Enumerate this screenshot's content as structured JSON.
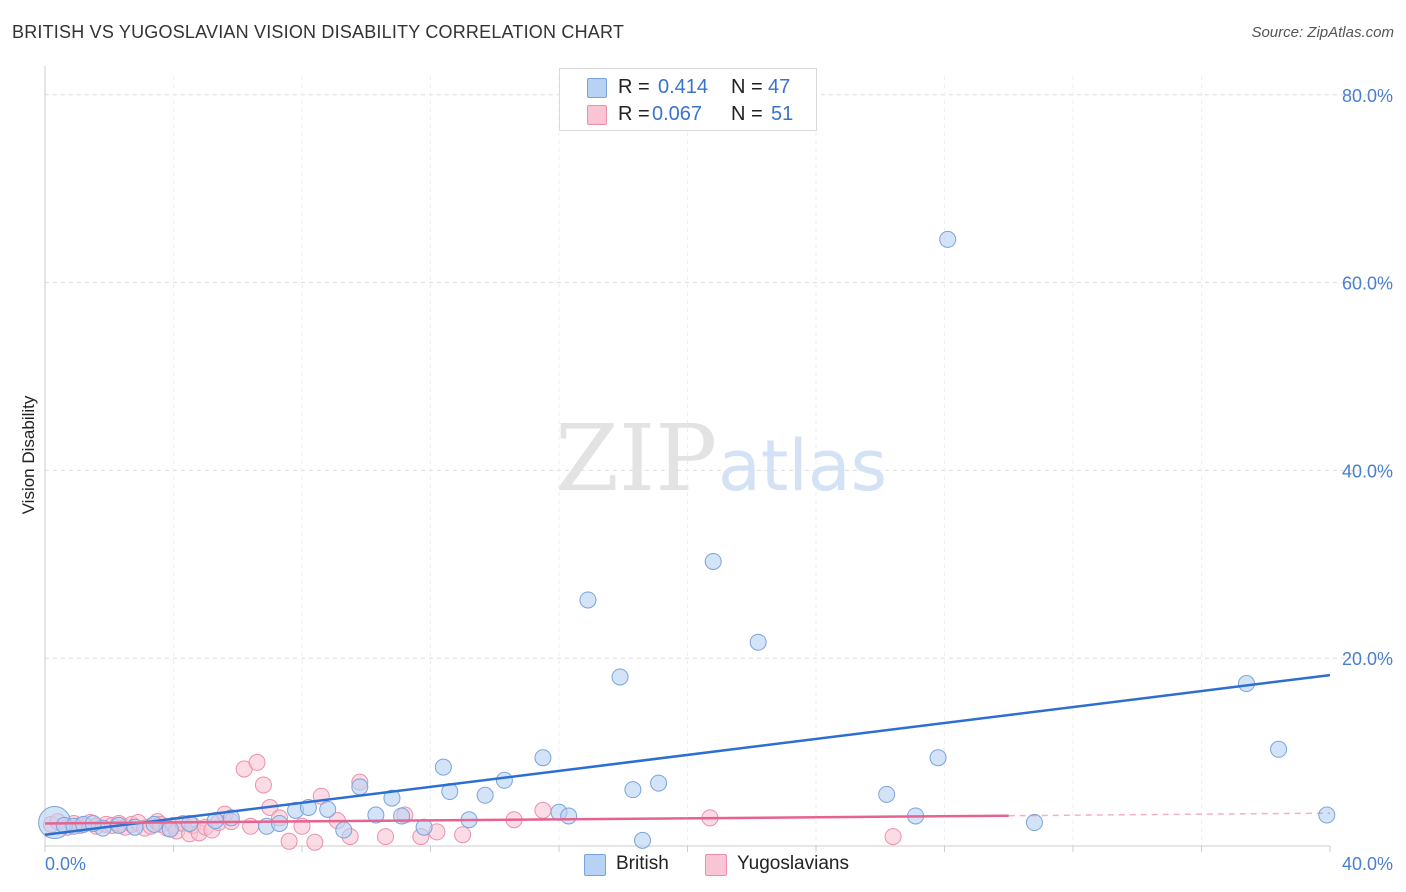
{
  "title": "BRITISH VS YUGOSLAVIAN VISION DISABILITY CORRELATION CHART",
  "source": "Source: ZipAtlas.com",
  "watermark": {
    "zip": "ZIP",
    "atlas": "atlas"
  },
  "colors": {
    "british_fill": "#b8d2f4",
    "british_stroke": "#7aa3dc",
    "british_line": "#2d6fd0",
    "yugo_fill": "#f9c4d4",
    "yugo_stroke": "#ee8fab",
    "yugo_line": "#e8628f",
    "grid": "#dddddd",
    "tick": "#4a7fd0"
  },
  "legend": {
    "rows": [
      {
        "r_label": "R =",
        "r_value": "0.414",
        "n_label": "N =",
        "n_value": "47"
      },
      {
        "r_label": "R =",
        "r_value": "0.067",
        "n_label": "N =",
        "n_value": "51"
      }
    ]
  },
  "bottom_legend": {
    "british": "British",
    "yugoslavians": "Yugoslavians"
  },
  "chart_data": {
    "type": "scatter",
    "title": "BRITISH VS YUGOSLAVIAN VISION DISABILITY CORRELATION CHART",
    "xlabel": "",
    "ylabel": "Vision Disability",
    "xlim": [
      0,
      40
    ],
    "ylim": [
      0,
      82
    ],
    "x_ticks": [
      0,
      40
    ],
    "x_tick_labels": [
      "0.0%",
      "40.0%"
    ],
    "y_ticks": [
      20,
      40,
      60,
      80
    ],
    "y_tick_labels": [
      "20.0%",
      "40.0%",
      "60.0%",
      "80.0%"
    ],
    "grid": true,
    "series": [
      {
        "name": "British",
        "R": 0.414,
        "N": 47,
        "trend": {
          "x": [
            0,
            40
          ],
          "y": [
            1.2,
            18.2
          ],
          "dashed_from": null
        },
        "points": [
          {
            "x": 0.3,
            "y": 2.5,
            "big": true
          },
          {
            "x": 0.6,
            "y": 2.2
          },
          {
            "x": 0.9,
            "y": 2.1
          },
          {
            "x": 1.2,
            "y": 2.3
          },
          {
            "x": 1.8,
            "y": 1.9
          },
          {
            "x": 2.3,
            "y": 2.2
          },
          {
            "x": 2.8,
            "y": 2.0
          },
          {
            "x": 3.4,
            "y": 2.3
          },
          {
            "x": 3.9,
            "y": 1.8
          },
          {
            "x": 4.5,
            "y": 2.4
          },
          {
            "x": 5.3,
            "y": 2.7
          },
          {
            "x": 5.8,
            "y": 3.0
          },
          {
            "x": 6.9,
            "y": 2.1
          },
          {
            "x": 7.3,
            "y": 2.4
          },
          {
            "x": 7.8,
            "y": 3.8
          },
          {
            "x": 8.2,
            "y": 4.1
          },
          {
            "x": 8.8,
            "y": 3.9
          },
          {
            "x": 9.3,
            "y": 1.7
          },
          {
            "x": 9.8,
            "y": 6.3
          },
          {
            "x": 10.3,
            "y": 3.3
          },
          {
            "x": 10.8,
            "y": 5.1
          },
          {
            "x": 11.1,
            "y": 3.2
          },
          {
            "x": 11.8,
            "y": 2.0
          },
          {
            "x": 12.4,
            "y": 8.4
          },
          {
            "x": 12.6,
            "y": 5.8
          },
          {
            "x": 13.2,
            "y": 2.8
          },
          {
            "x": 13.7,
            "y": 5.4
          },
          {
            "x": 14.3,
            "y": 7.0
          },
          {
            "x": 15.5,
            "y": 9.4
          },
          {
            "x": 16.0,
            "y": 3.6
          },
          {
            "x": 16.3,
            "y": 3.2
          },
          {
            "x": 16.9,
            "y": 26.2
          },
          {
            "x": 17.9,
            "y": 18.0
          },
          {
            "x": 18.3,
            "y": 6.0
          },
          {
            "x": 18.6,
            "y": 0.6
          },
          {
            "x": 19.1,
            "y": 6.7
          },
          {
            "x": 20.8,
            "y": 30.3
          },
          {
            "x": 22.2,
            "y": 21.7
          },
          {
            "x": 26.2,
            "y": 5.5
          },
          {
            "x": 27.1,
            "y": 3.2
          },
          {
            "x": 27.8,
            "y": 9.4
          },
          {
            "x": 28.1,
            "y": 64.6
          },
          {
            "x": 30.8,
            "y": 2.5
          },
          {
            "x": 37.4,
            "y": 17.3
          },
          {
            "x": 38.4,
            "y": 10.3
          },
          {
            "x": 39.9,
            "y": 3.3
          },
          {
            "x": 1.5,
            "y": 2.4
          }
        ]
      },
      {
        "name": "Yugoslavians",
        "R": 0.067,
        "N": 51,
        "trend": {
          "x": [
            0,
            40
          ],
          "y": [
            2.4,
            3.5
          ],
          "dashed_from": 30.0
        },
        "points": [
          {
            "x": 0.2,
            "y": 2.3
          },
          {
            "x": 0.4,
            "y": 2.6
          },
          {
            "x": 0.7,
            "y": 2.0
          },
          {
            "x": 0.9,
            "y": 2.4
          },
          {
            "x": 1.1,
            "y": 2.2
          },
          {
            "x": 1.4,
            "y": 2.5
          },
          {
            "x": 1.6,
            "y": 2.1
          },
          {
            "x": 1.9,
            "y": 2.3
          },
          {
            "x": 2.1,
            "y": 2.2
          },
          {
            "x": 2.3,
            "y": 2.4
          },
          {
            "x": 2.5,
            "y": 2.0
          },
          {
            "x": 2.7,
            "y": 2.3
          },
          {
            "x": 2.9,
            "y": 2.5
          },
          {
            "x": 3.1,
            "y": 1.9
          },
          {
            "x": 3.3,
            "y": 2.1
          },
          {
            "x": 3.5,
            "y": 2.6
          },
          {
            "x": 3.6,
            "y": 2.3
          },
          {
            "x": 3.8,
            "y": 1.9
          },
          {
            "x": 4.0,
            "y": 2.2
          },
          {
            "x": 4.1,
            "y": 1.6
          },
          {
            "x": 4.3,
            "y": 2.4
          },
          {
            "x": 4.5,
            "y": 1.3
          },
          {
            "x": 4.6,
            "y": 2.2
          },
          {
            "x": 4.8,
            "y": 1.4
          },
          {
            "x": 5.0,
            "y": 2.0
          },
          {
            "x": 5.2,
            "y": 1.7
          },
          {
            "x": 5.4,
            "y": 2.5
          },
          {
            "x": 5.6,
            "y": 3.4
          },
          {
            "x": 5.8,
            "y": 2.6
          },
          {
            "x": 6.2,
            "y": 8.2
          },
          {
            "x": 6.4,
            "y": 2.1
          },
          {
            "x": 6.6,
            "y": 8.9
          },
          {
            "x": 6.8,
            "y": 6.5
          },
          {
            "x": 7.0,
            "y": 4.1
          },
          {
            "x": 7.3,
            "y": 3.0
          },
          {
            "x": 7.6,
            "y": 0.5
          },
          {
            "x": 8.0,
            "y": 2.1
          },
          {
            "x": 8.4,
            "y": 0.4
          },
          {
            "x": 8.6,
            "y": 5.3
          },
          {
            "x": 9.1,
            "y": 2.7
          },
          {
            "x": 9.5,
            "y": 1.0
          },
          {
            "x": 9.8,
            "y": 6.8
          },
          {
            "x": 10.6,
            "y": 1.0
          },
          {
            "x": 11.2,
            "y": 3.3
          },
          {
            "x": 11.7,
            "y": 1.0
          },
          {
            "x": 12.2,
            "y": 1.5
          },
          {
            "x": 13.0,
            "y": 1.2
          },
          {
            "x": 14.6,
            "y": 2.8
          },
          {
            "x": 15.5,
            "y": 3.8
          },
          {
            "x": 20.7,
            "y": 3.0
          },
          {
            "x": 26.4,
            "y": 1.0
          }
        ]
      }
    ]
  }
}
